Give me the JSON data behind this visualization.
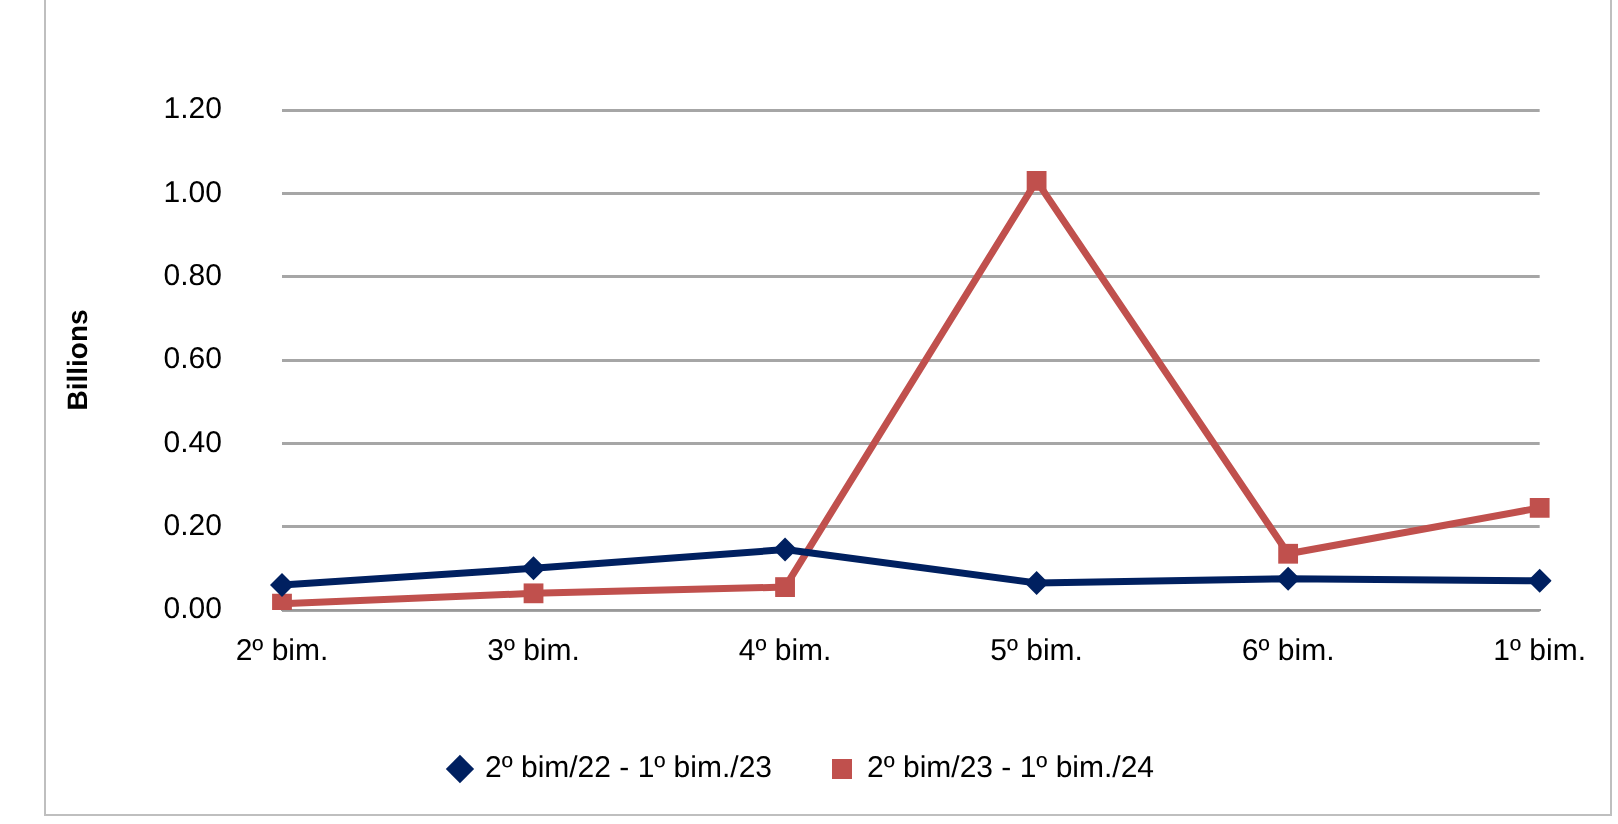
{
  "chart_data": {
    "type": "line",
    "ylabel": "Billions",
    "categories": [
      "2º bim.",
      "3º bim.",
      "4º bim.",
      "5º bim.",
      "6º bim.",
      "1º bim."
    ],
    "series": [
      {
        "name": "2º bim/22 - 1º bim./23",
        "color": "#002060",
        "marker": "diamond",
        "values": [
          0.06,
          0.1,
          0.145,
          0.065,
          0.075,
          0.07
        ]
      },
      {
        "name": "2º bim/23 - 1º bim./24",
        "color": "#c0504d",
        "marker": "square",
        "values": [
          0.015,
          0.04,
          0.055,
          1.03,
          0.135,
          0.245
        ]
      }
    ],
    "ylim": [
      0,
      1.2
    ],
    "yticks": [
      {
        "value": 0,
        "label": "0.00"
      },
      {
        "value": 0.2,
        "label": "0.20"
      },
      {
        "value": 0.4,
        "label": "0.40"
      },
      {
        "value": 0.6,
        "label": "0.60"
      },
      {
        "value": 0.8,
        "label": "0.80"
      },
      {
        "value": 1,
        "label": "1.00"
      },
      {
        "value": 1.2,
        "label": "1.20"
      }
    ],
    "grid": "y",
    "legend": "bottom"
  }
}
